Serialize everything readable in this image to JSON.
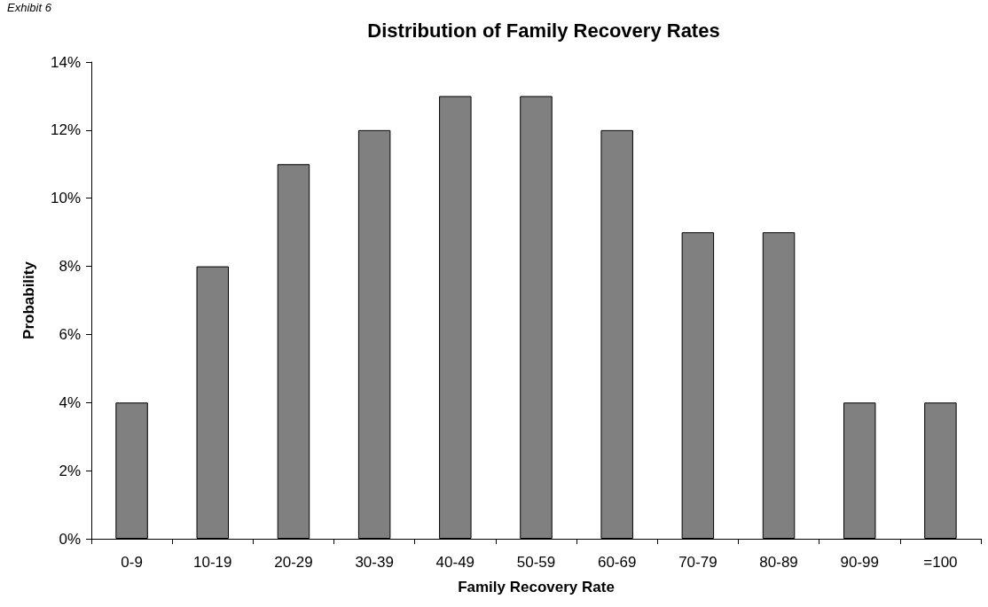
{
  "chart_data": {
    "type": "bar",
    "title": "Distribution of Family Recovery Rates",
    "xlabel": "Family Recovery Rate",
    "ylabel": "Probability",
    "annotations": [
      "Exhibit 6"
    ],
    "categories": [
      "0-9",
      "10-19",
      "20-29",
      "30-39",
      "40-49",
      "50-59",
      "60-69",
      "70-79",
      "80-89",
      "90-99",
      "=100"
    ],
    "values": [
      4,
      8,
      11,
      12,
      13,
      13,
      12,
      9,
      9,
      4,
      4
    ],
    "color": "#808080",
    "ylim": [
      0,
      14
    ],
    "yticks": [
      {
        "value": 0,
        "label": "0%"
      },
      {
        "value": 2,
        "label": "2%"
      },
      {
        "value": 4,
        "label": "4%"
      },
      {
        "value": 6,
        "label": "6%"
      },
      {
        "value": 8,
        "label": "8%"
      },
      {
        "value": 10,
        "label": "10%"
      },
      {
        "value": 12,
        "label": "12%"
      },
      {
        "value": 14,
        "label": "14%"
      }
    ],
    "grid": false
  }
}
